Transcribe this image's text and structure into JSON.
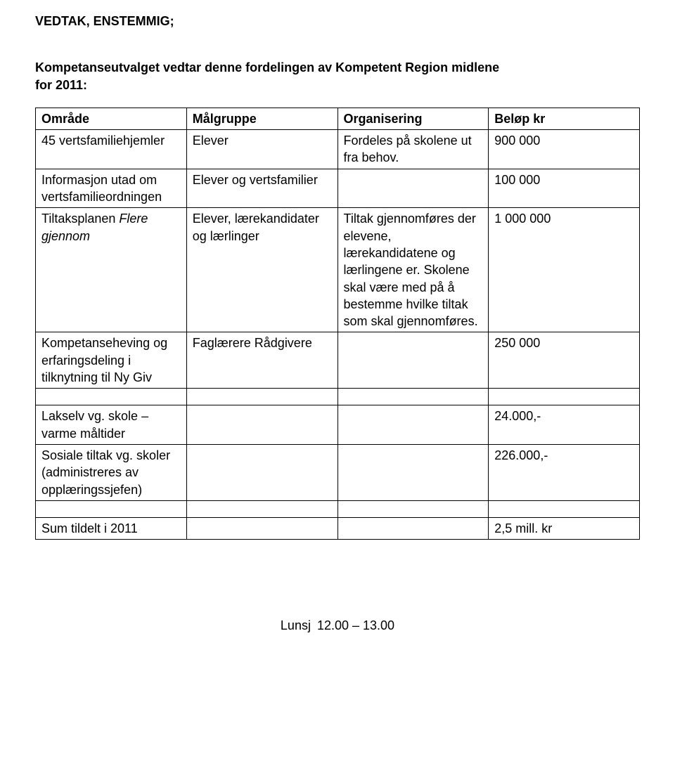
{
  "heading": "VEDTAK, ENSTEMMIG;",
  "subheading_l1": "Kompetanseutvalget vedtar denne fordelingen av Kompetent Region midlene",
  "subheading_l2": "for 2011:",
  "table": {
    "headers": {
      "c1": "Område",
      "c2": "Målgruppe",
      "c3": "Organisering",
      "c4": "Beløp kr"
    },
    "r1": {
      "c1": "45 vertsfamiliehjemler",
      "c2": "Elever",
      "c3": "Fordeles på skolene ut fra behov.",
      "c4": "900 000"
    },
    "r2": {
      "c1": "Informasjon utad om vertsfamilieordningen",
      "c2": "Elever og vertsfamilier",
      "c3": "",
      "c4": "100 000"
    },
    "r3": {
      "c1_a": "Tiltaksplanen ",
      "c1_b": "Flere gjennom",
      "c2": "Elever, lærekandidater og lærlinger",
      "c3": "Tiltak gjennomføres der elevene, lærekandidatene og lærlingene er. Skolene skal være med på å bestemme hvilke tiltak som skal gjennomføres.",
      "c4": "1 000 000"
    },
    "r4": {
      "c1": "Kompetanseheving og erfaringsdeling i tilknytning til Ny Giv",
      "c2": "Faglærere Rådgivere",
      "c3": "",
      "c4": "250 000"
    },
    "r6": {
      "c1": "Lakselv vg. skole – varme måltider",
      "c4": " 24.000,-"
    },
    "r7": {
      "c1": "Sosiale tiltak vg. skoler (administreres av opplæringssjefen)",
      "c4": "226.000,-"
    },
    "sum": {
      "label": "Sum tildelt i 2011",
      "value": "2,5 mill. kr"
    }
  },
  "footer": {
    "label": "Lunsj",
    "time": "12.00 – 13.00"
  }
}
